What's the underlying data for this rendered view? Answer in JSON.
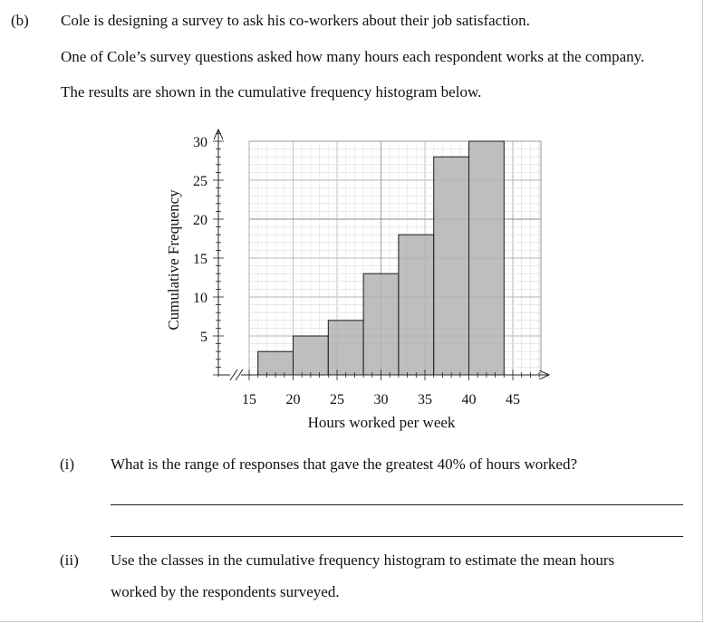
{
  "part": {
    "label": "(b)",
    "intro": [
      "Cole is designing a survey to ask his co-workers about their job satisfaction.",
      "One of Cole’s survey questions asked how many hours each respondent works at the company.",
      "The results are shown in the cumulative frequency histogram below."
    ]
  },
  "chart_data": {
    "type": "bar",
    "subtype": "cumulative frequency histogram",
    "xlabel": "Hours worked per week",
    "ylabel": "Cumulative Frequency",
    "x_ticks": [
      15,
      20,
      25,
      30,
      35,
      40,
      45
    ],
    "y_ticks": [
      5,
      10,
      15,
      20,
      25,
      30
    ],
    "xlim": [
      15,
      45
    ],
    "ylim": [
      0,
      30
    ],
    "grid": true,
    "axis_break": true,
    "bar_color": "#b3b3b3",
    "bins": [
      {
        "from": 16,
        "to": 20,
        "value": 3
      },
      {
        "from": 20,
        "to": 24,
        "value": 5
      },
      {
        "from": 24,
        "to": 28,
        "value": 7
      },
      {
        "from": 28,
        "to": 32,
        "value": 13
      },
      {
        "from": 32,
        "to": 36,
        "value": 18
      },
      {
        "from": 36,
        "to": 40,
        "value": 28
      },
      {
        "from": 40,
        "to": 44,
        "value": 30
      }
    ]
  },
  "questions": [
    {
      "number": "(i)",
      "text": "What is the range of responses that gave the greatest 40% of hours worked?"
    },
    {
      "number": "(ii)",
      "text": "Use the classes in the cumulative frequency histogram to estimate the mean hours",
      "text2": "worked by the respondents surveyed."
    }
  ]
}
